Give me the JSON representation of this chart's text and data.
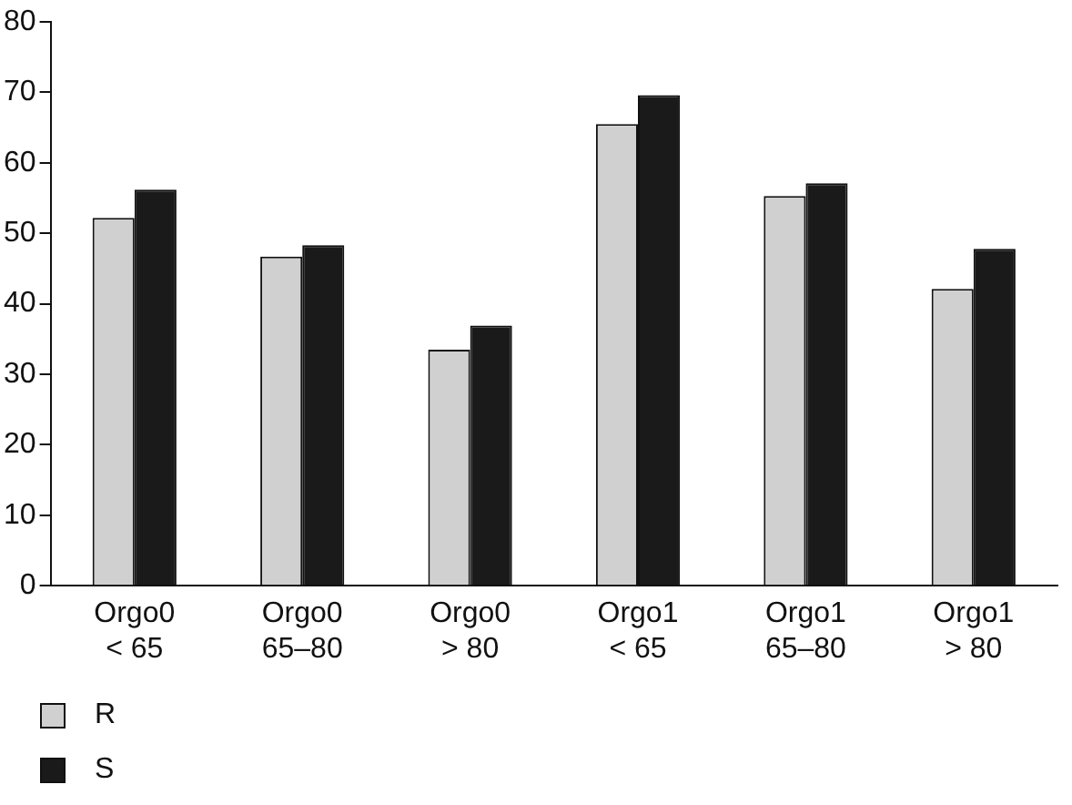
{
  "chart_data": {
    "type": "bar",
    "categories": [
      "Orgo0\n< 65",
      "Orgo0\n65–80",
      "Orgo0\n> 80",
      "Orgo1\n< 65",
      "Orgo1\n65–80",
      "Orgo1\n> 80"
    ],
    "series": [
      {
        "name": "R",
        "color": "#d0d0d0",
        "values": [
          52.2,
          46.7,
          33.5,
          65.5,
          55.3,
          42.1
        ]
      },
      {
        "name": "S",
        "color": "#1a1a1a",
        "values": [
          56.2,
          48.3,
          36.9,
          69.6,
          57.1,
          47.8
        ]
      }
    ],
    "ylim": [
      0,
      80
    ],
    "yticks": [
      0,
      10,
      20,
      30,
      40,
      50,
      60,
      70,
      80
    ],
    "grid": false,
    "legend": "bottom left"
  }
}
